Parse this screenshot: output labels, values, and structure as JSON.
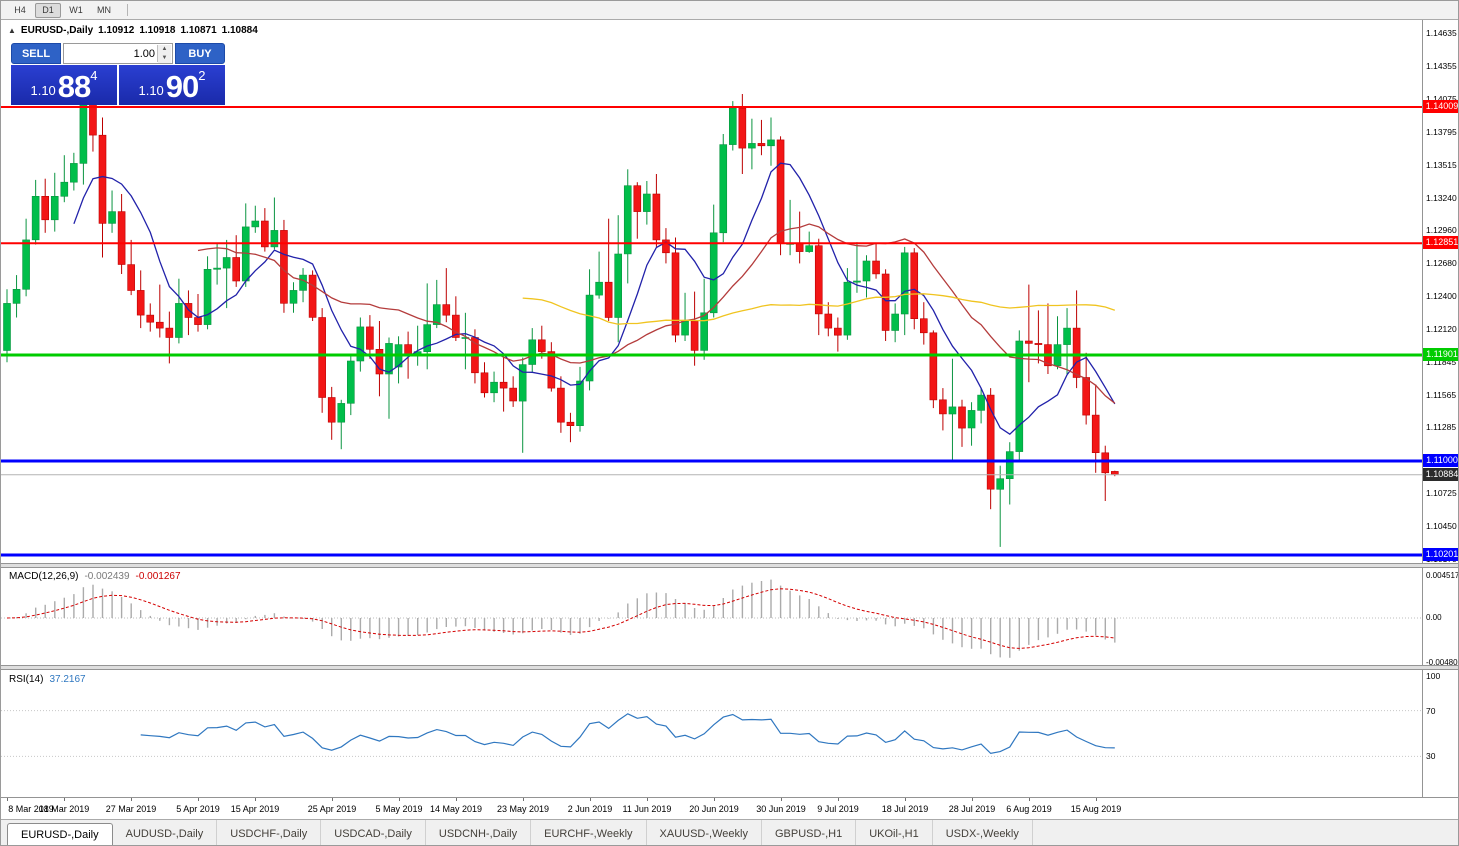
{
  "toolbar": {
    "timeframes": [
      {
        "label": "H4",
        "active": false
      },
      {
        "label": "D1",
        "active": true
      },
      {
        "label": "W1",
        "active": false
      },
      {
        "label": "MN",
        "active": false
      }
    ]
  },
  "info_bar": {
    "collapse": "▲",
    "symbol": "EURUSD-,Daily",
    "open": "1.10912",
    "high": "1.10918",
    "low": "1.10871",
    "close": "1.10884"
  },
  "trade_panel": {
    "sell_label": "SELL",
    "buy_label": "BUY",
    "volume": "1.00",
    "spinner_up": "▲",
    "spinner_down": "▼",
    "sell_price": {
      "prefix": "1.10",
      "big": "88",
      "sup": "4"
    },
    "buy_price": {
      "prefix": "1.10",
      "big": "90",
      "sup": "2"
    }
  },
  "macd_panel": {
    "title": "MACD(12,26,9)",
    "value_main": "-0.002439",
    "value_signal": "-0.001267"
  },
  "rsi_panel": {
    "title": "RSI(14)",
    "value": "37.2167"
  },
  "axis": {
    "price_ticks": [
      1.14635,
      1.14355,
      1.14075,
      1.13795,
      1.13515,
      1.1324,
      1.1296,
      1.1268,
      1.124,
      1.1212,
      1.11845,
      1.11565,
      1.11285,
      1.11005,
      1.10725,
      1.1045,
      1.1017
    ],
    "macd_ticks": [
      {
        "label": "0.004517",
        "value": 0.004517
      },
      {
        "label": "0.00",
        "value": 0
      },
      {
        "label": "-0.004806",
        "value": -0.004806
      }
    ],
    "rsi_ticks": [
      {
        "label": "100",
        "value": 100
      },
      {
        "label": "70",
        "value": 70
      },
      {
        "label": "30",
        "value": 30
      }
    ]
  },
  "hlines": [
    {
      "price": 1.14009,
      "label": "1.14009",
      "color": "#ff0000",
      "thickness": 2
    },
    {
      "price": 1.12851,
      "label": "1.12851",
      "color": "#ff0000",
      "thickness": 2
    },
    {
      "price": 1.11901,
      "label": "1.11901",
      "color": "#00cc00",
      "thickness": 3
    },
    {
      "price": 1.11,
      "label": "1.11000",
      "color": "#0000ff",
      "thickness": 3
    },
    {
      "price": 1.10201,
      "label": "1.10201",
      "color": "#0000ff",
      "thickness": 3
    }
  ],
  "price_marker": {
    "price": 1.10884,
    "label": "1.10884",
    "line_color": "#b4b4b4",
    "badge_color": "#2b2b2b"
  },
  "tabs": {
    "items": [
      {
        "label": "EURUSD-,Daily",
        "active": true
      },
      {
        "label": "AUDUSD-,Daily",
        "active": false
      },
      {
        "label": "USDCHF-,Daily",
        "active": false
      },
      {
        "label": "USDCAD-,Daily",
        "active": false
      },
      {
        "label": "USDCNH-,Daily",
        "active": false
      },
      {
        "label": "EURCHF-,Weekly",
        "active": false
      },
      {
        "label": "XAUUSD-,Weekly",
        "active": false
      },
      {
        "label": "GBPUSD-,H1",
        "active": false
      },
      {
        "label": "UKOil-,H1",
        "active": false
      },
      {
        "label": "USDX-,Weekly",
        "active": false
      }
    ]
  },
  "chart_data": {
    "type": "candlestick",
    "symbol": "EURUSD-,Daily",
    "ylim": [
      1.10133,
      1.14749
    ],
    "macd_ylim": [
      -0.005055,
      0.005377
    ],
    "rsi_ylim": [
      -5.5,
      105.5
    ],
    "up_color": "#00be4a",
    "up_stroke": "#0a9440",
    "down_color": "#f21616",
    "down_stroke": "#bc0000",
    "moving_averages": [
      {
        "period": 8,
        "color": "#2222aa"
      },
      {
        "period": 21,
        "color": "#b43c3c"
      },
      {
        "period": 55,
        "color": "#f0c420"
      }
    ],
    "macd": {
      "params": "12,26,9",
      "hist_color": "#ababab",
      "signal_color": "#d40000"
    },
    "rsi": {
      "period": 14,
      "color": "#2f77c0",
      "levels": [
        70,
        30
      ]
    },
    "date_labels": [
      {
        "text": "8 Mar 2019",
        "i": 0
      },
      {
        "text": "18 Mar 2019",
        "i": 6
      },
      {
        "text": "27 Mar 2019",
        "i": 13
      },
      {
        "text": "5 Apr 2019",
        "i": 20
      },
      {
        "text": "15 Apr 2019",
        "i": 26
      },
      {
        "text": "25 Apr 2019",
        "i": 34
      },
      {
        "text": "5 May 2019",
        "i": 41
      },
      {
        "text": "14 May 2019",
        "i": 47
      },
      {
        "text": "23 May 2019",
        "i": 54
      },
      {
        "text": "2 Jun 2019",
        "i": 61
      },
      {
        "text": "11 Jun 2019",
        "i": 67
      },
      {
        "text": "20 Jun 2019",
        "i": 74
      },
      {
        "text": "30 Jun 2019",
        "i": 81
      },
      {
        "text": "9 Jul 2019",
        "i": 87
      },
      {
        "text": "18 Jul 2019",
        "i": 94
      },
      {
        "text": "28 Jul 2019",
        "i": 101
      },
      {
        "text": "6 Aug 2019",
        "i": 107
      },
      {
        "text": "15 Aug 2019",
        "i": 114
      }
    ],
    "ohlc": [
      [
        1.1194,
        1.1246,
        1.1184,
        1.1234
      ],
      [
        1.1234,
        1.1258,
        1.1222,
        1.1246
      ],
      [
        1.1246,
        1.1306,
        1.124,
        1.1288
      ],
      [
        1.1288,
        1.1339,
        1.1284,
        1.1325
      ],
      [
        1.1325,
        1.134,
        1.1294,
        1.1305
      ],
      [
        1.1305,
        1.1345,
        1.1295,
        1.1325
      ],
      [
        1.1325,
        1.136,
        1.132,
        1.1337
      ],
      [
        1.1337,
        1.1362,
        1.133,
        1.1353
      ],
      [
        1.1353,
        1.142,
        1.1335,
        1.141
      ],
      [
        1.141,
        1.1421,
        1.1363,
        1.1377
      ],
      [
        1.1377,
        1.1392,
        1.1273,
        1.1302
      ],
      [
        1.1302,
        1.133,
        1.1294,
        1.1312
      ],
      [
        1.1312,
        1.1327,
        1.1259,
        1.1267
      ],
      [
        1.1267,
        1.1288,
        1.1241,
        1.1245
      ],
      [
        1.1245,
        1.1262,
        1.1213,
        1.1224
      ],
      [
        1.1224,
        1.1234,
        1.121,
        1.1218
      ],
      [
        1.1218,
        1.125,
        1.1205,
        1.1213
      ],
      [
        1.1213,
        1.1227,
        1.1183,
        1.1205
      ],
      [
        1.1205,
        1.1255,
        1.12,
        1.1234
      ],
      [
        1.1234,
        1.1245,
        1.1207,
        1.1222
      ],
      [
        1.1222,
        1.1242,
        1.121,
        1.1216
      ],
      [
        1.1216,
        1.1274,
        1.1212,
        1.1263
      ],
      [
        1.1263,
        1.1285,
        1.125,
        1.1264
      ],
      [
        1.1264,
        1.1288,
        1.123,
        1.1273
      ],
      [
        1.1273,
        1.1292,
        1.1248,
        1.1253
      ],
      [
        1.1253,
        1.1319,
        1.1248,
        1.1299
      ],
      [
        1.1299,
        1.1317,
        1.1294,
        1.1304
      ],
      [
        1.1304,
        1.1315,
        1.1278,
        1.1282
      ],
      [
        1.1282,
        1.1324,
        1.128,
        1.1296
      ],
      [
        1.1296,
        1.1305,
        1.1226,
        1.1234
      ],
      [
        1.1234,
        1.1252,
        1.1226,
        1.1245
      ],
      [
        1.1245,
        1.1264,
        1.1235,
        1.1258
      ],
      [
        1.1258,
        1.1262,
        1.1219,
        1.1222
      ],
      [
        1.1222,
        1.123,
        1.1141,
        1.1154
      ],
      [
        1.1154,
        1.1163,
        1.1118,
        1.1133
      ],
      [
        1.1133,
        1.1152,
        1.111,
        1.1149
      ],
      [
        1.1149,
        1.119,
        1.1139,
        1.1185
      ],
      [
        1.1185,
        1.1222,
        1.1176,
        1.1214
      ],
      [
        1.1214,
        1.1224,
        1.1187,
        1.1195
      ],
      [
        1.1195,
        1.1219,
        1.1155,
        1.1174
      ],
      [
        1.1174,
        1.1205,
        1.1136,
        1.12
      ],
      [
        1.118,
        1.1206,
        1.1166,
        1.1199
      ],
      [
        1.1199,
        1.121,
        1.117,
        1.1191
      ],
      [
        1.1191,
        1.1215,
        1.1181,
        1.1193
      ],
      [
        1.1193,
        1.1251,
        1.1178,
        1.1216
      ],
      [
        1.1216,
        1.1254,
        1.1213,
        1.1233
      ],
      [
        1.1233,
        1.1264,
        1.1218,
        1.1224
      ],
      [
        1.1224,
        1.124,
        1.1202,
        1.1205
      ],
      [
        1.1205,
        1.1226,
        1.1178,
        1.1205
      ],
      [
        1.1205,
        1.1212,
        1.1166,
        1.1175
      ],
      [
        1.1175,
        1.1184,
        1.1154,
        1.1158
      ],
      [
        1.1158,
        1.1176,
        1.115,
        1.1167
      ],
      [
        1.1167,
        1.1188,
        1.1142,
        1.1162
      ],
      [
        1.1162,
        1.1172,
        1.1146,
        1.1151
      ],
      [
        1.1151,
        1.1188,
        1.1107,
        1.1182
      ],
      [
        1.1182,
        1.1213,
        1.1175,
        1.1203
      ],
      [
        1.1203,
        1.1215,
        1.1187,
        1.1193
      ],
      [
        1.1193,
        1.1201,
        1.1159,
        1.1162
      ],
      [
        1.1162,
        1.1172,
        1.1124,
        1.1133
      ],
      [
        1.1133,
        1.1141,
        1.1116,
        1.113
      ],
      [
        1.113,
        1.118,
        1.1125,
        1.1168
      ],
      [
        1.1168,
        1.1263,
        1.116,
        1.1241
      ],
      [
        1.1241,
        1.1278,
        1.1238,
        1.1252
      ],
      [
        1.1252,
        1.1306,
        1.1219,
        1.1222
      ],
      [
        1.1222,
        1.1309,
        1.1201,
        1.1276
      ],
      [
        1.1276,
        1.1348,
        1.1251,
        1.1334
      ],
      [
        1.1334,
        1.1337,
        1.1289,
        1.1312
      ],
      [
        1.1312,
        1.1338,
        1.1301,
        1.1327
      ],
      [
        1.1327,
        1.1344,
        1.1282,
        1.1288
      ],
      [
        1.1288,
        1.1298,
        1.1268,
        1.1277
      ],
      [
        1.1277,
        1.129,
        1.1201,
        1.1207
      ],
      [
        1.1207,
        1.1243,
        1.1202,
        1.1219
      ],
      [
        1.1219,
        1.1244,
        1.1181,
        1.1194
      ],
      [
        1.1194,
        1.1255,
        1.1186,
        1.1226
      ],
      [
        1.1226,
        1.1318,
        1.1222,
        1.1294
      ],
      [
        1.1294,
        1.1378,
        1.1286,
        1.1369
      ],
      [
        1.1369,
        1.1406,
        1.1364,
        1.14
      ],
      [
        1.14,
        1.1412,
        1.1344,
        1.1366
      ],
      [
        1.1366,
        1.1391,
        1.1348,
        1.137
      ],
      [
        1.137,
        1.139,
        1.136,
        1.1368
      ],
      [
        1.1368,
        1.1392,
        1.1351,
        1.1373
      ],
      [
        1.1373,
        1.1376,
        1.1275,
        1.1285
      ],
      [
        1.1285,
        1.1322,
        1.1275,
        1.1285
      ],
      [
        1.1285,
        1.1312,
        1.1268,
        1.1278
      ],
      [
        1.1278,
        1.1295,
        1.1277,
        1.1283
      ],
      [
        1.1283,
        1.1289,
        1.1207,
        1.1225
      ],
      [
        1.1225,
        1.1235,
        1.1206,
        1.1213
      ],
      [
        1.1213,
        1.1222,
        1.1193,
        1.1207
      ],
      [
        1.1207,
        1.1264,
        1.1203,
        1.1252
      ],
      [
        1.1252,
        1.1286,
        1.1243,
        1.1253
      ],
      [
        1.1253,
        1.1275,
        1.1239,
        1.127
      ],
      [
        1.127,
        1.1285,
        1.1255,
        1.1259
      ],
      [
        1.1259,
        1.1263,
        1.1202,
        1.1211
      ],
      [
        1.1211,
        1.1234,
        1.1201,
        1.1225
      ],
      [
        1.1225,
        1.1282,
        1.1207,
        1.1277
      ],
      [
        1.1277,
        1.1281,
        1.1212,
        1.1221
      ],
      [
        1.1221,
        1.1235,
        1.1199,
        1.1209
      ],
      [
        1.1209,
        1.1211,
        1.1145,
        1.1152
      ],
      [
        1.1152,
        1.1162,
        1.1126,
        1.114
      ],
      [
        1.114,
        1.1187,
        1.1101,
        1.1146
      ],
      [
        1.1146,
        1.1152,
        1.1112,
        1.1128
      ],
      [
        1.1128,
        1.115,
        1.1113,
        1.1143
      ],
      [
        1.1143,
        1.1162,
        1.1132,
        1.1156
      ],
      [
        1.1156,
        1.1162,
        1.1059,
        1.1076
      ],
      [
        1.1076,
        1.1096,
        1.1027,
        1.1085
      ],
      [
        1.1085,
        1.1116,
        1.1063,
        1.1108
      ],
      [
        1.1108,
        1.1211,
        1.1101,
        1.1202
      ],
      [
        1.1202,
        1.125,
        1.1167,
        1.12
      ],
      [
        1.12,
        1.1228,
        1.1183,
        1.1199
      ],
      [
        1.1199,
        1.1234,
        1.1174,
        1.1181
      ],
      [
        1.1181,
        1.1223,
        1.1178,
        1.1199
      ],
      [
        1.1199,
        1.123,
        1.1174,
        1.1213
      ],
      [
        1.1213,
        1.1245,
        1.1162,
        1.1171
      ],
      [
        1.1171,
        1.1192,
        1.1131,
        1.1139
      ],
      [
        1.1139,
        1.1165,
        1.109,
        1.1107
      ],
      [
        1.1107,
        1.1113,
        1.1066,
        1.109
      ],
      [
        1.10912,
        1.10918,
        1.10871,
        1.10884
      ]
    ]
  }
}
